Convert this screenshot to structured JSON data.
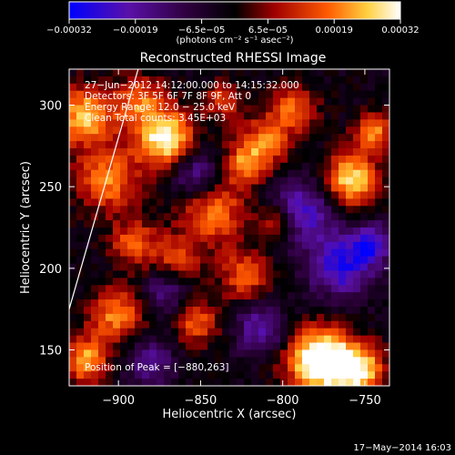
{
  "chart_data": {
    "type": "heatmap",
    "title": "Reconstructed RHESSI Image",
    "xlabel": "Heliocentric X (arcsec)",
    "ylabel": "Heliocentric Y (arcsec)",
    "xlim": [
      -930,
      -735
    ],
    "ylim": [
      128,
      322
    ],
    "x_ticks": [
      -900,
      -850,
      -800,
      -750
    ],
    "x_tick_labels": [
      "−900",
      "−850",
      "−800",
      "−750"
    ],
    "y_ticks": [
      150,
      200,
      250,
      300
    ],
    "y_tick_labels": [
      "150",
      "200",
      "250",
      "300"
    ],
    "colorbar": {
      "min": -0.00032,
      "max": 0.00032,
      "tick_labels": [
        "−0.00032",
        "−0.00019",
        "−6.5e−05",
        "6.5e−05",
        "0.00019",
        "0.00032"
      ],
      "unit_label": "(photons cm⁻² s⁻¹ asec⁻²)",
      "colormap": [
        "#0000ff",
        "#5a10a8",
        "#300040",
        "#000000",
        "#a00000",
        "#ff5a00",
        "#ffd040",
        "#ffffff"
      ]
    },
    "annotations": {
      "time": "27−Jun−2012 14:12:00.000 to 14:15:32.000",
      "detectors": "Detectors: 3F 5F 6F 7F 8F 9F, Att 0",
      "energy": "Energy Range: 12.0 − 25.0 keV",
      "method": "Clean    Total counts: 3.45E+03",
      "peak": "Position of Peak = [−880,263]"
    },
    "limb_line": {
      "x": [
        -930,
        -888
      ],
      "y": [
        175,
        322
      ]
    }
  },
  "footer": {
    "date": "17−May−2014 16:03"
  }
}
